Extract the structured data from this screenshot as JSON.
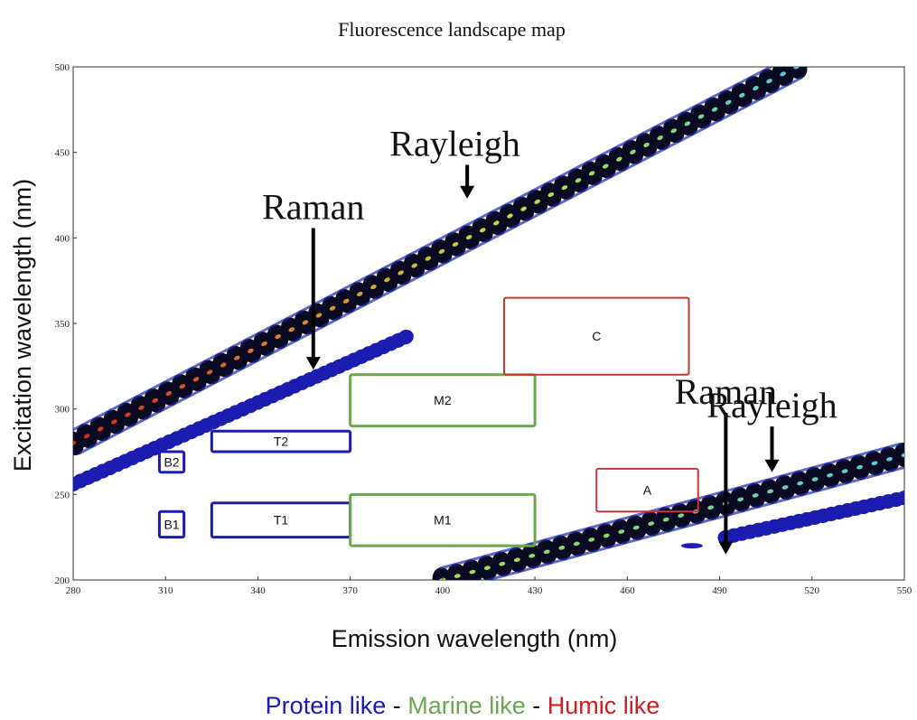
{
  "chart_data": {
    "type": "heatmap",
    "title": "Fluorescence landscape map",
    "xlabel": "Emission wavelength (nm)",
    "ylabel": "Excitation wavelength (nm)",
    "xlim": [
      280,
      550
    ],
    "ylim": [
      200,
      500
    ],
    "xticks": [
      280,
      310,
      340,
      370,
      400,
      430,
      460,
      490,
      520,
      550
    ],
    "yticks": [
      200,
      250,
      300,
      350,
      400,
      450,
      500
    ],
    "grid": false,
    "scatter_bands": [
      {
        "name": "Rayleigh",
        "x": [
          280,
          515
        ],
        "y": [
          280,
          500
        ],
        "color": "black",
        "core": "gradient"
      },
      {
        "name": "Raman",
        "x": [
          280,
          388
        ],
        "y": [
          256,
          342
        ],
        "color": "blue"
      },
      {
        "name": "Rayleigh",
        "x": [
          400,
          550
        ],
        "y": [
          200,
          273
        ],
        "color": "black",
        "core": "gradient"
      },
      {
        "name": "Raman",
        "x": [
          492,
          550
        ],
        "y": [
          225,
          248
        ],
        "color": "blue"
      }
    ],
    "regions": [
      {
        "label": "B2",
        "x": [
          308,
          316
        ],
        "y": [
          263,
          275
        ],
        "group": "Protein like"
      },
      {
        "label": "B1",
        "x": [
          308,
          316
        ],
        "y": [
          225,
          240
        ],
        "group": "Protein like"
      },
      {
        "label": "T2",
        "x": [
          325,
          370
        ],
        "y": [
          275,
          287
        ],
        "group": "Protein like"
      },
      {
        "label": "T1",
        "x": [
          325,
          370
        ],
        "y": [
          225,
          245
        ],
        "group": "Protein like"
      },
      {
        "label": "M2",
        "x": [
          370,
          430
        ],
        "y": [
          290,
          320
        ],
        "group": "Marine like"
      },
      {
        "label": "M1",
        "x": [
          370,
          430
        ],
        "y": [
          220,
          250
        ],
        "group": "Marine like"
      },
      {
        "label": "C",
        "x": [
          420,
          480
        ],
        "y": [
          320,
          365
        ],
        "group": "Humic like"
      },
      {
        "label": "A",
        "x": [
          450,
          483
        ],
        "y": [
          240,
          265
        ],
        "group": "Humic like"
      }
    ],
    "annotations": [
      {
        "text": "Rayleigh",
        "x": 404,
        "y": 448,
        "arrow_to": [
          408,
          423
        ]
      },
      {
        "text": "Raman",
        "x": 358,
        "y": 411,
        "arrow_to": [
          358,
          323
        ]
      },
      {
        "text": "Raman",
        "x": 492,
        "y": 303,
        "arrow_to": [
          492,
          215
        ]
      },
      {
        "text": "Rayleigh",
        "x": 507,
        "y": 295,
        "arrow_to": [
          507,
          263
        ]
      }
    ],
    "legend": [
      {
        "text": "Protein like",
        "color": "#1a1ab8"
      },
      {
        "text": " - ",
        "color": "#111111"
      },
      {
        "text": "Marine like",
        "color": "#6aa84f"
      },
      {
        "text": " - ",
        "color": "#111111"
      },
      {
        "text": "Humic like",
        "color": "#cc1f1f"
      }
    ],
    "group_colors": {
      "Protein like": "#1a1ab8",
      "Marine like": "#6aa84f",
      "Humic like": "#cc3333"
    }
  }
}
